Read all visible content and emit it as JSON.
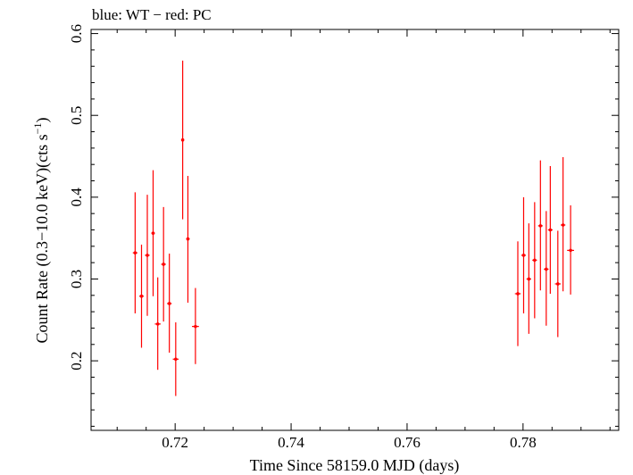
{
  "chart_data": {
    "type": "scatter",
    "title": "blue: WT − red: PC",
    "xlabel": "Time Since 58159.0 MJD (days)",
    "ylabel_main": "Count Rate (0.3−10.0 keV)(cts s",
    "ylabel_sup": "−1",
    "ylabel_end": ")",
    "xlim": [
      0.7055,
      0.7965
    ],
    "ylim": [
      0.115,
      0.605
    ],
    "x_ticks": [
      {
        "value": 0.72,
        "label": "0.72"
      },
      {
        "value": 0.74,
        "label": "0.74"
      },
      {
        "value": 0.76,
        "label": "0.76"
      },
      {
        "value": 0.78,
        "label": "0.78"
      }
    ],
    "y_ticks": [
      {
        "value": 0.2,
        "label": "0.2"
      },
      {
        "value": 0.3,
        "label": "0.3"
      },
      {
        "value": 0.4,
        "label": "0.4"
      },
      {
        "value": 0.5,
        "label": "0.5"
      },
      {
        "value": 0.6,
        "label": "0.6"
      }
    ],
    "series": [
      {
        "mode": "PC",
        "color": "#ff0000",
        "points": [
          {
            "x": 0.7131,
            "y": 0.332,
            "xerr": 0.0004,
            "ylo": 0.258,
            "yhi": 0.406
          },
          {
            "x": 0.7142,
            "y": 0.279,
            "xerr": 0.0004,
            "ylo": 0.216,
            "yhi": 0.342
          },
          {
            "x": 0.7152,
            "y": 0.329,
            "xerr": 0.0004,
            "ylo": 0.255,
            "yhi": 0.403
          },
          {
            "x": 0.7162,
            "y": 0.356,
            "xerr": 0.0003,
            "ylo": 0.279,
            "yhi": 0.433
          },
          {
            "x": 0.717,
            "y": 0.245,
            "xerr": 0.0005,
            "ylo": 0.189,
            "yhi": 0.302
          },
          {
            "x": 0.718,
            "y": 0.318,
            "xerr": 0.0004,
            "ylo": 0.248,
            "yhi": 0.388
          },
          {
            "x": 0.719,
            "y": 0.27,
            "xerr": 0.0004,
            "ylo": 0.21,
            "yhi": 0.331
          },
          {
            "x": 0.7201,
            "y": 0.202,
            "xerr": 0.0005,
            "ylo": 0.157,
            "yhi": 0.247
          },
          {
            "x": 0.7213,
            "y": 0.47,
            "xerr": 0.0002,
            "ylo": 0.373,
            "yhi": 0.567
          },
          {
            "x": 0.7222,
            "y": 0.349,
            "xerr": 0.0003,
            "ylo": 0.271,
            "yhi": 0.426
          },
          {
            "x": 0.7235,
            "y": 0.242,
            "xerr": 0.0006,
            "ylo": 0.196,
            "yhi": 0.289
          },
          {
            "x": 0.7791,
            "y": 0.282,
            "xerr": 0.0005,
            "ylo": 0.218,
            "yhi": 0.346
          },
          {
            "x": 0.7801,
            "y": 0.329,
            "xerr": 0.0004,
            "ylo": 0.258,
            "yhi": 0.4
          },
          {
            "x": 0.781,
            "y": 0.3,
            "xerr": 0.0004,
            "ylo": 0.233,
            "yhi": 0.368
          },
          {
            "x": 0.782,
            "y": 0.323,
            "xerr": 0.0004,
            "ylo": 0.252,
            "yhi": 0.394
          },
          {
            "x": 0.783,
            "y": 0.365,
            "xerr": 0.0004,
            "ylo": 0.286,
            "yhi": 0.445
          },
          {
            "x": 0.784,
            "y": 0.312,
            "xerr": 0.0004,
            "ylo": 0.243,
            "yhi": 0.383
          },
          {
            "x": 0.7847,
            "y": 0.36,
            "xerr": 0.0004,
            "ylo": 0.282,
            "yhi": 0.438
          },
          {
            "x": 0.786,
            "y": 0.294,
            "xerr": 0.0005,
            "ylo": 0.229,
            "yhi": 0.359
          },
          {
            "x": 0.7869,
            "y": 0.366,
            "xerr": 0.0004,
            "ylo": 0.285,
            "yhi": 0.449
          },
          {
            "x": 0.7882,
            "y": 0.335,
            "xerr": 0.0006,
            "ylo": 0.281,
            "yhi": 0.39
          }
        ]
      }
    ]
  }
}
